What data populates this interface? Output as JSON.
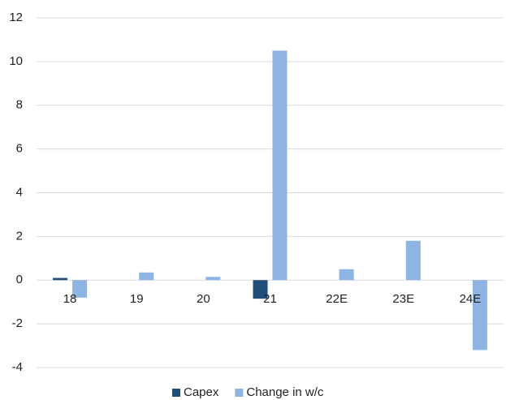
{
  "chart_data": {
    "type": "bar",
    "categories": [
      "18",
      "19",
      "20",
      "21",
      "22E",
      "23E",
      "24E"
    ],
    "series": [
      {
        "name": "Capex",
        "color": "#1f4e79",
        "values": [
          0.1,
          0,
          0,
          -0.85,
          0,
          0,
          0
        ]
      },
      {
        "name": "Change in w/c",
        "color": "#8eb4e3",
        "values": [
          -0.8,
          0.35,
          0.15,
          10.5,
          0.5,
          1.8,
          -3.2
        ]
      }
    ],
    "ylim": [
      -4,
      12
    ],
    "yticks": [
      -4,
      -2,
      0,
      2,
      4,
      6,
      8,
      10,
      12
    ],
    "grid": true,
    "legend": "bottom"
  }
}
